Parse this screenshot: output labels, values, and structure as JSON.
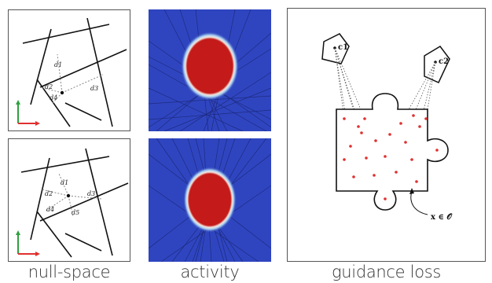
{
  "captions": {
    "null_space": "null-space",
    "activity": "activity",
    "guidance_loss": "guidance loss"
  },
  "null_space_top": {
    "distances": [
      "d1",
      "d2",
      "d3",
      "d4"
    ]
  },
  "null_space_bottom": {
    "distances": [
      "d1",
      "d2",
      "d3",
      "d4",
      "d5"
    ]
  },
  "guidance": {
    "cameras": [
      "c1",
      "c2"
    ],
    "region_label": "x ∈ 𝒪"
  },
  "colors": {
    "axis_x": "#e03030",
    "axis_y": "#30a040",
    "heat_low": "#2a3fb8",
    "heat_high": "#c41a1a",
    "sample_point": "#e03030"
  }
}
